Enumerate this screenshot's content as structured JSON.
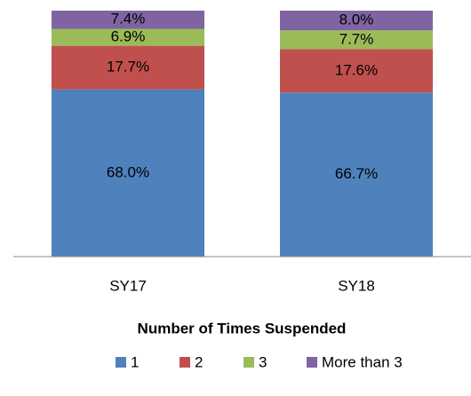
{
  "chart_data": {
    "type": "stacked_bar",
    "x_label": "Number of Times Suspended",
    "categories": [
      "SY17",
      "SY18"
    ],
    "series": [
      {
        "name": "1",
        "color": "#4f81bd",
        "values": [
          68.0,
          66.7
        ],
        "value_labels": [
          "68.0%",
          "66.7%"
        ]
      },
      {
        "name": "2",
        "color": "#c0504d",
        "values": [
          17.7,
          17.6
        ],
        "value_labels": [
          "17.7%",
          "17.6%"
        ]
      },
      {
        "name": "3",
        "color": "#9bbb59",
        "values": [
          6.9,
          7.7
        ],
        "value_labels": [
          "6.9%",
          "7.7%"
        ]
      },
      {
        "name": "More than 3",
        "color": "#8064a2",
        "values": [
          7.4,
          8.0
        ],
        "value_labels": [
          "7.4%",
          "8.0%"
        ]
      }
    ],
    "ylim": [
      0,
      100
    ],
    "legend": "bottom"
  }
}
